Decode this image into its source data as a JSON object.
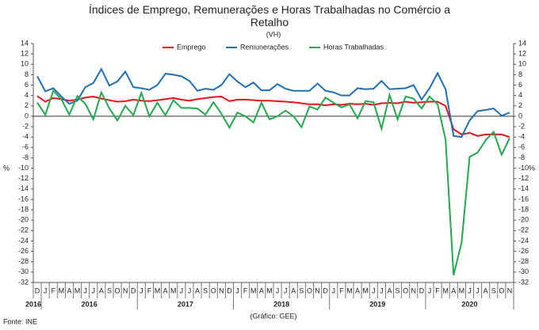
{
  "chart_data": {
    "type": "line",
    "title": "Índices de Emprego, Remunerações e Horas Trabalhadas  no Comércio a Retalho",
    "subtitle": "(VH)",
    "y_label": "%",
    "y2_label": "%",
    "source": "Fonte: INE",
    "credit": "(Gráfico: GEE)",
    "categories": [
      "D",
      "J",
      "F",
      "M",
      "A",
      "M",
      "J",
      "J",
      "A",
      "S",
      "O",
      "N",
      "D",
      "J",
      "F",
      "M",
      "A",
      "M",
      "J",
      "J",
      "A",
      "S",
      "O",
      "N",
      "D",
      "J",
      "F",
      "M",
      "A",
      "M",
      "J",
      "J",
      "A",
      "S",
      "O",
      "N",
      "D",
      "J",
      "F",
      "M",
      "A",
      "M",
      "J",
      "J",
      "A",
      "S",
      "O",
      "N",
      "D",
      "J",
      "F",
      "M",
      "A",
      "M",
      "J",
      "J",
      "A",
      "S",
      "O",
      "N"
    ],
    "years": [
      "2016",
      "2016",
      "2017",
      "2018",
      "2019",
      "2020"
    ],
    "series": [
      {
        "name": "Emprego",
        "color": "#e8141b",
        "values": [
          3.9,
          2.8,
          3.5,
          3.3,
          3.0,
          3.2,
          3.6,
          3.8,
          3.4,
          3.1,
          2.8,
          2.9,
          3.2,
          3.0,
          2.9,
          3.1,
          3.3,
          3.5,
          3.2,
          3.0,
          3.3,
          3.5,
          3.7,
          3.8,
          2.9,
          3.2,
          3.2,
          3.1,
          3.0,
          3.0,
          2.9,
          2.8,
          2.7,
          2.5,
          2.3,
          2.3,
          2.1,
          2.3,
          2.2,
          2.4,
          2.3,
          2.4,
          2.2,
          2.5,
          2.6,
          2.5,
          2.8,
          2.6,
          2.7,
          2.8,
          2.8,
          2.0,
          -2.5,
          -3.5,
          -3.2,
          -3.8,
          -3.5,
          -3.5,
          -3.5,
          -4.0
        ]
      },
      {
        "name": "Remunerações",
        "color": "#1f6fb4",
        "values": [
          7.7,
          4.8,
          5.4,
          3.8,
          2.4,
          3.0,
          5.6,
          6.4,
          9.1,
          5.9,
          6.7,
          8.6,
          5.6,
          5.4,
          5.1,
          6.0,
          8.2,
          8.0,
          7.7,
          6.8,
          4.9,
          5.3,
          5.1,
          6.0,
          8.1,
          6.7,
          5.6,
          6.5,
          5.0,
          5.0,
          6.2,
          5.3,
          4.9,
          4.9,
          4.9,
          6.3,
          4.9,
          4.6,
          4.0,
          4.0,
          5.4,
          5.2,
          5.3,
          6.8,
          5.2,
          5.3,
          5.4,
          6.0,
          3.2,
          5.4,
          8.3,
          5.2,
          -3.8,
          -4.0,
          -0.8,
          1.0,
          1.2,
          1.5,
          0.1,
          0.7
        ]
      },
      {
        "name": "Horas Trabalhadas",
        "color": "#22a94f",
        "values": [
          2.6,
          0.3,
          4.9,
          3.3,
          0.3,
          3.9,
          2.4,
          -0.6,
          4.6,
          1.5,
          -0.8,
          2.0,
          0.2,
          4.5,
          0.0,
          2.6,
          0.2,
          3.1,
          1.6,
          1.6,
          1.5,
          0.3,
          2.7,
          0.5,
          -2.2,
          0.7,
          0.0,
          -1.2,
          2.6,
          -0.6,
          0.0,
          1.1,
          0.0,
          -2.1,
          1.9,
          1.3,
          3.6,
          2.6,
          1.7,
          2.3,
          -0.4,
          2.9,
          2.7,
          -2.4,
          4.1,
          -0.6,
          3.8,
          3.4,
          1.5,
          3.8,
          2.3,
          -4.5,
          -30.6,
          -24.3,
          -7.8,
          -7.0,
          -4.6,
          -3.0,
          -7.4,
          -4.2
        ]
      }
    ],
    "ylim": [
      -32,
      14
    ],
    "yticks": [
      -32,
      -30,
      -28,
      -26,
      -24,
      -22,
      -20,
      -18,
      -16,
      -14,
      -12,
      -10,
      -8,
      -6,
      -4,
      -2,
      0,
      2,
      4,
      6,
      8,
      10,
      12,
      14
    ],
    "y2lim": [
      -32,
      14
    ],
    "y2ticks": [
      -32,
      -30,
      -28,
      -26,
      -24,
      -22,
      -20,
      -18,
      -16,
      -14,
      -12,
      -10,
      -8,
      -6,
      -4,
      -2,
      0,
      2,
      4,
      6,
      8,
      10,
      12,
      14
    ],
    "legend": "top"
  }
}
